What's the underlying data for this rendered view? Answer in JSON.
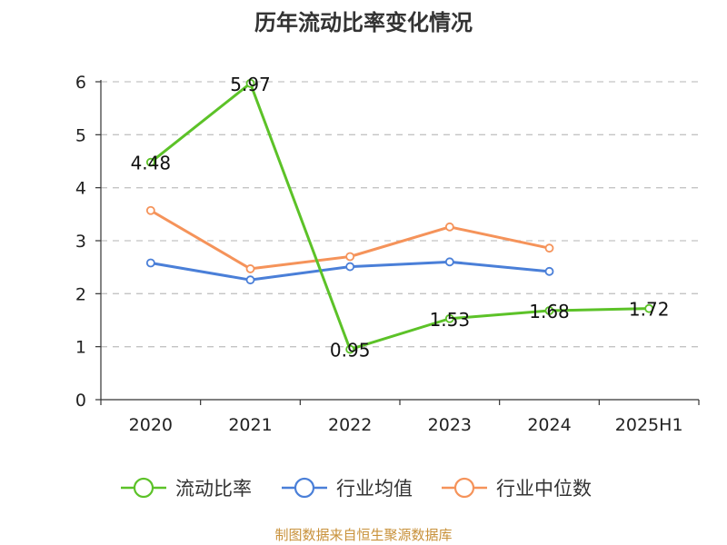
{
  "chart_data": {
    "type": "line",
    "title": "历年流动比率变化情况",
    "categories": [
      "2020",
      "2021",
      "2022",
      "2023",
      "2024",
      "2025H1"
    ],
    "ylim": [
      0,
      6
    ],
    "yticks": [
      0,
      1,
      2,
      3,
      4,
      5,
      6
    ],
    "grid": true,
    "legend_position": "bottom",
    "series": [
      {
        "name": "流动比率",
        "color": "#5cc228",
        "values": [
          4.48,
          5.97,
          0.95,
          1.53,
          1.68,
          1.72
        ],
        "labels": [
          "4.48",
          "5.97",
          "0.95",
          "1.53",
          "1.68",
          "1.72"
        ]
      },
      {
        "name": "行业均值",
        "color": "#4a7fd8",
        "values": [
          2.58,
          2.26,
          2.51,
          2.6,
          2.42,
          null
        ]
      },
      {
        "name": "行业中位数",
        "color": "#f5935a",
        "values": [
          3.57,
          2.47,
          2.7,
          3.26,
          2.86,
          null
        ]
      }
    ],
    "source": "制图数据来自恒生聚源数据库"
  }
}
